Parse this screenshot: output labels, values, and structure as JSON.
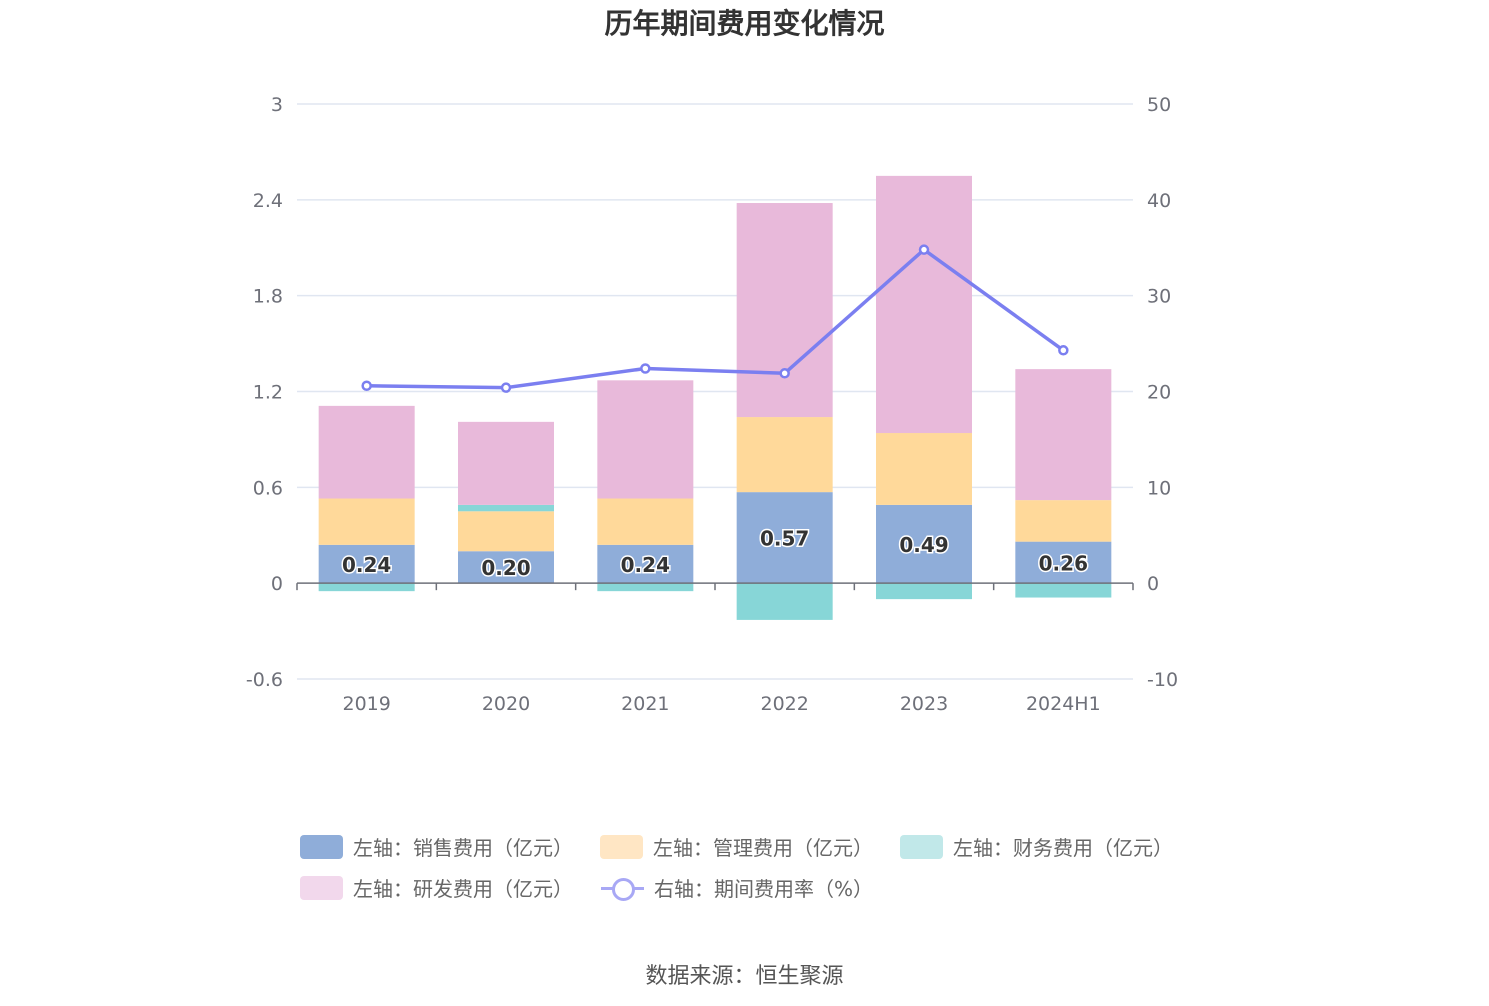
{
  "title": "历年期间费用变化情况",
  "source": "数据来源：恒生聚源",
  "chart_data": {
    "type": "bar",
    "stacked": true,
    "categories": [
      "2019",
      "2020",
      "2021",
      "2022",
      "2023",
      "2024H1"
    ],
    "y_left": {
      "ticks": [
        "3",
        "2.4",
        "1.8",
        "1.2",
        "0.6",
        "0",
        "-0.6"
      ],
      "ylim": [
        -0.6,
        3
      ]
    },
    "y_right": {
      "ticks": [
        "50",
        "40",
        "30",
        "20",
        "10",
        "0",
        "-10"
      ],
      "ylim": [
        -10,
        50
      ]
    },
    "grid": true,
    "legend_position": "bottom",
    "series": [
      {
        "name": "左轴：销售费用（亿元）",
        "axis": "left",
        "color": "#8fadd9",
        "values": [
          0.24,
          0.2,
          0.24,
          0.57,
          0.49,
          0.26
        ],
        "labels": [
          "0.24",
          "0.20",
          "0.24",
          "0.57",
          "0.49",
          "0.26"
        ]
      },
      {
        "name": "左轴：管理费用（亿元）",
        "axis": "left",
        "color": "#ffd99a",
        "values": [
          0.29,
          0.25,
          0.29,
          0.47,
          0.45,
          0.26
        ]
      },
      {
        "name": "左轴：财务费用（亿元）",
        "axis": "left",
        "color": "#87d6d7",
        "values": [
          -0.05,
          0.04,
          -0.05,
          -0.23,
          -0.1,
          -0.09
        ]
      },
      {
        "name": "左轴：研发费用（亿元）",
        "axis": "left",
        "color": "#e8b9da",
        "values": [
          0.58,
          0.52,
          0.74,
          1.34,
          1.61,
          0.82
        ]
      },
      {
        "name": "右轴：期间费用率（%）",
        "axis": "right",
        "type": "line",
        "color": "#7b7ff0",
        "values": [
          20.6,
          20.4,
          22.4,
          21.9,
          34.8,
          24.3
        ]
      }
    ]
  },
  "legend": {
    "items": [
      {
        "label": "左轴：销售费用（亿元）",
        "color": "#8fadd9"
      },
      {
        "label": "左轴：管理费用（亿元）",
        "color": "#ffe6c4"
      },
      {
        "label": "左轴：财务费用（亿元）",
        "color": "#c1e8e9"
      },
      {
        "label": "左轴：研发费用（亿元）",
        "color": "#f2d8ec"
      },
      {
        "label": "右轴：期间费用率（%）",
        "color": "#a8a8f5"
      }
    ]
  }
}
